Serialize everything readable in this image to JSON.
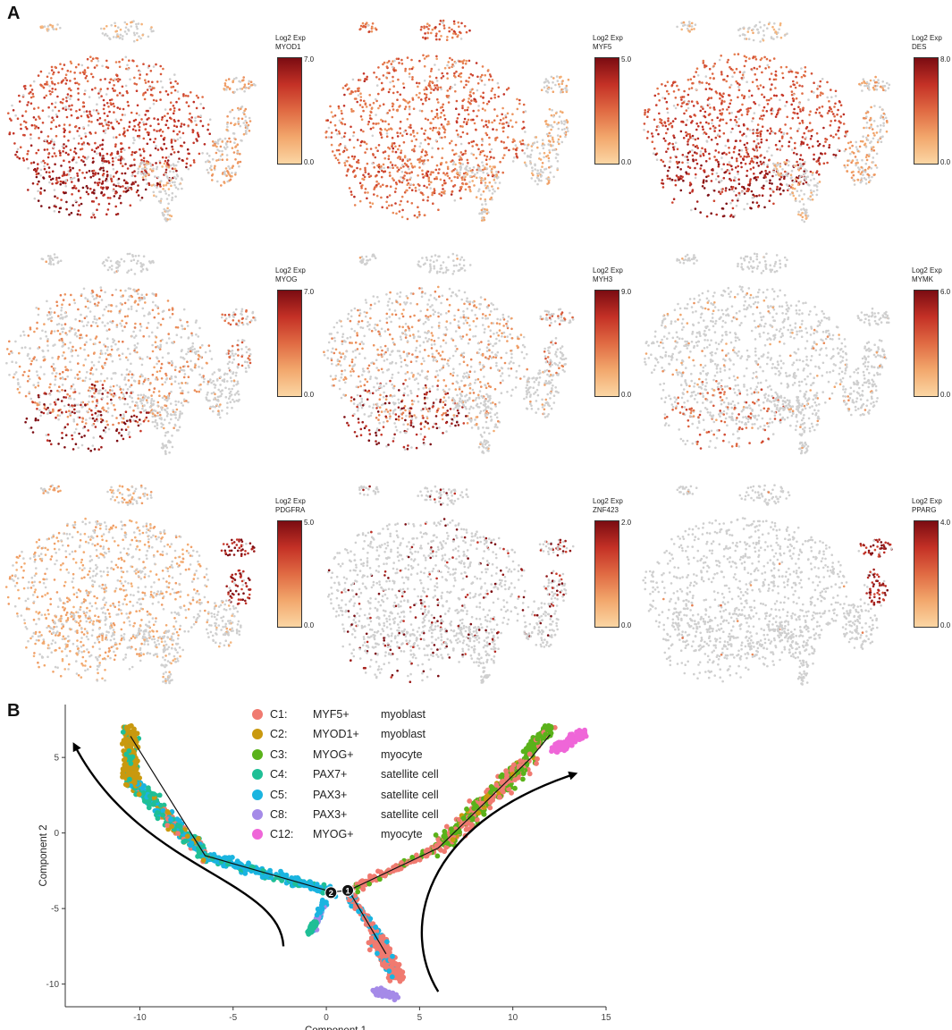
{
  "panels": {
    "a": "A",
    "b": "B"
  },
  "legend_title": "Log2 Exp",
  "tsne_genes": [
    {
      "gene": "MYOD1",
      "min": "0.0",
      "max": "7.0",
      "pattern": "bigleft"
    },
    {
      "gene": "MYF5",
      "min": "0.0",
      "max": "5.0",
      "pattern": "broad"
    },
    {
      "gene": "DES",
      "min": "0.0",
      "max": "8.0",
      "pattern": "bigleft"
    },
    {
      "gene": "MYOG",
      "min": "0.0",
      "max": "7.0",
      "pattern": "tip"
    },
    {
      "gene": "MYH3",
      "min": "0.0",
      "max": "9.0",
      "pattern": "tip"
    },
    {
      "gene": "MYMK",
      "min": "0.0",
      "max": "6.0",
      "pattern": "tipweak"
    },
    {
      "gene": "PDGFRA",
      "min": "0.0",
      "max": "5.0",
      "pattern": "right"
    },
    {
      "gene": "ZNF423",
      "min": "0.0",
      "max": "2.0",
      "pattern": "sparse"
    },
    {
      "gene": "PPARG",
      "min": "0.0",
      "max": "4.0",
      "pattern": "rightonly"
    }
  ],
  "chart_data": {
    "type": "scatter",
    "title": "",
    "xlabel": "Component 1",
    "ylabel": "Component 2",
    "xlim": [
      -14,
      15
    ],
    "ylim": [
      -11.5,
      8.5
    ],
    "xticks": [
      "-10",
      "-5",
      "0",
      "5",
      "10",
      "15"
    ],
    "yticks": [
      "5",
      "0",
      "-5",
      "-10"
    ],
    "branch_points": [
      "1",
      "2"
    ],
    "series": [
      {
        "name": "C1:",
        "marker": "MYF5+",
        "cell": "myoblast",
        "color": "#f07a70"
      },
      {
        "name": "C2:",
        "marker": "MYOD1+",
        "cell": "myoblast",
        "color": "#c9990f"
      },
      {
        "name": "C3:",
        "marker": "MYOG+",
        "cell": "myocyte",
        "color": "#5ab21a"
      },
      {
        "name": "C4:",
        "marker": "PAX7+",
        "cell": "satellite cell",
        "color": "#1fbf96"
      },
      {
        "name": "C5:",
        "marker": "PAX3+",
        "cell": "satellite cell",
        "color": "#1ab4e0"
      },
      {
        "name": "C8:",
        "marker": "PAX3+",
        "cell": "satellite cell",
        "color": "#a58ae8"
      },
      {
        "name": "C12:",
        "marker": "MYOG+",
        "cell": "myocyte",
        "color": "#ef66d8"
      }
    ]
  }
}
